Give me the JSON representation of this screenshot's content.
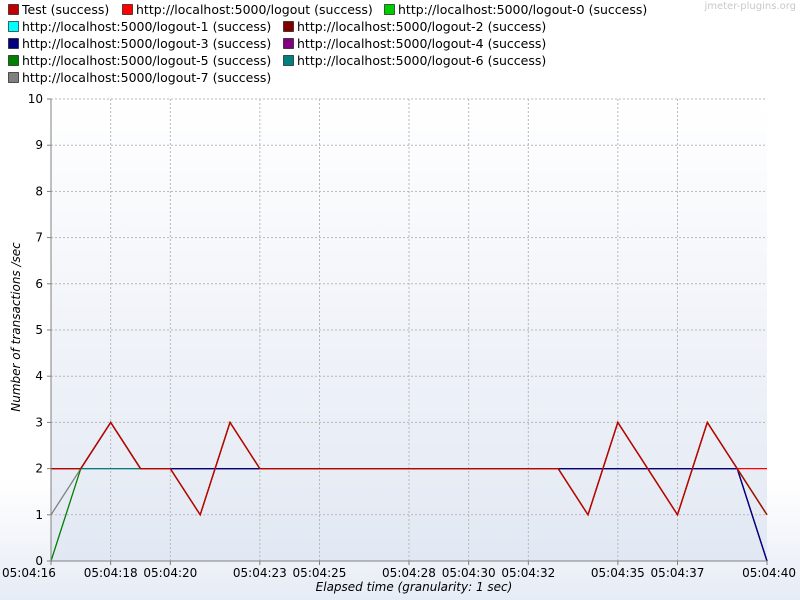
{
  "watermark": "jmeter-plugins.org",
  "chart_data": {
    "type": "line",
    "title": "",
    "xlabel": "Elapsed time (granularity: 1 sec)",
    "ylabel": "Number of transactions /sec",
    "ylim": [
      0,
      10
    ],
    "yticks": [
      "0",
      "1",
      "2",
      "3",
      "4",
      "5",
      "6",
      "7",
      "8",
      "9",
      "10"
    ],
    "x_start": "05:04:16",
    "x_end": "05:04:40",
    "x": [
      "05:04:16",
      "05:04:17",
      "05:04:18",
      "05:04:19",
      "05:04:20",
      "05:04:21",
      "05:04:22",
      "05:04:23",
      "05:04:24",
      "05:04:25",
      "05:04:26",
      "05:04:27",
      "05:04:28",
      "05:04:29",
      "05:04:30",
      "05:04:31",
      "05:04:32",
      "05:04:33",
      "05:04:34",
      "05:04:35",
      "05:04:36",
      "05:04:37",
      "05:04:38",
      "05:04:39",
      "05:04:40"
    ],
    "xtick_labels": [
      "05:04:16",
      "05:04:18",
      "05:04:20",
      "05:04:23",
      "05:04:25",
      "05:04:28",
      "05:04:30",
      "05:04:32",
      "05:04:35",
      "05:04:37",
      "05:04:40"
    ],
    "grid": true,
    "legend_position": "top",
    "series": [
      {
        "name": "Test (success)",
        "color": "#c00000",
        "values": [
          2,
          2,
          3,
          2,
          2,
          1,
          3,
          2,
          2,
          2,
          2,
          2,
          2,
          2,
          2,
          2,
          2,
          2,
          1,
          3,
          2,
          1,
          3,
          2,
          1
        ]
      },
      {
        "name": "http://localhost:5000/logout (success)",
        "color": "#ff0000",
        "values": [
          2,
          2,
          3,
          2,
          2,
          1,
          3,
          2,
          2,
          2,
          2,
          2,
          2,
          2,
          2,
          2,
          2,
          2,
          1,
          3,
          2,
          1,
          3,
          2,
          2
        ]
      },
      {
        "name": "http://localhost:5000/logout-0 (success)",
        "color": "#00cc00",
        "values": [
          2,
          2,
          3,
          2,
          2,
          1,
          3,
          2,
          2,
          2,
          2,
          2,
          2,
          2,
          2,
          2,
          2,
          2,
          1,
          3,
          2,
          1,
          3,
          2,
          1
        ]
      },
      {
        "name": "http://localhost:5000/logout-1 (success)",
        "color": "#00ffff",
        "values": [
          2,
          2,
          3,
          2,
          2,
          1,
          3,
          2,
          2,
          2,
          2,
          2,
          2,
          2,
          2,
          2,
          2,
          2,
          1,
          3,
          2,
          1,
          3,
          2,
          1
        ]
      },
      {
        "name": "http://localhost:5000/logout-2 (success)",
        "color": "#800000",
        "values": [
          2,
          2,
          3,
          2,
          2,
          1,
          3,
          2,
          2,
          2,
          2,
          2,
          2,
          2,
          2,
          2,
          2,
          2,
          1,
          3,
          2,
          1,
          3,
          2,
          1
        ]
      },
      {
        "name": "http://localhost:5000/logout-3 (success)",
        "color": "#000080",
        "values": [
          2,
          2,
          3,
          2,
          2,
          2,
          2,
          2,
          2,
          2,
          2,
          2,
          2,
          2,
          2,
          2,
          2,
          2,
          2,
          2,
          2,
          2,
          2,
          2,
          0
        ]
      },
      {
        "name": "http://localhost:5000/logout-4 (success)",
        "color": "#800080",
        "values": [
          2,
          2,
          3,
          2,
          2,
          2,
          2,
          2,
          2,
          2,
          2,
          2,
          2,
          2,
          2,
          2,
          2,
          2,
          2,
          2,
          2,
          2,
          2,
          2,
          0
        ]
      },
      {
        "name": "http://localhost:5000/logout-5 (success)",
        "color": "#008000",
        "values": [
          0,
          2,
          3,
          2,
          2,
          2,
          2,
          2,
          2,
          2,
          2,
          2,
          2,
          2,
          2,
          2,
          2,
          2,
          2,
          2,
          2,
          2,
          2,
          2,
          1
        ]
      },
      {
        "name": "http://localhost:5000/logout-6 (success)",
        "color": "#008080",
        "values": [
          2,
          2,
          2,
          2,
          2,
          2,
          2,
          2,
          2,
          2,
          2,
          2,
          2,
          2,
          2,
          2,
          2,
          2,
          2,
          2,
          2,
          2,
          2,
          2,
          0
        ]
      },
      {
        "name": "http://localhost:5000/logout-7 (success)",
        "color": "#808080",
        "values": [
          1,
          2,
          2,
          2,
          2,
          2,
          2,
          2,
          2,
          2,
          2,
          2,
          2,
          2,
          2,
          2,
          2,
          2,
          2,
          2,
          2,
          2,
          2,
          2,
          1
        ]
      }
    ]
  }
}
